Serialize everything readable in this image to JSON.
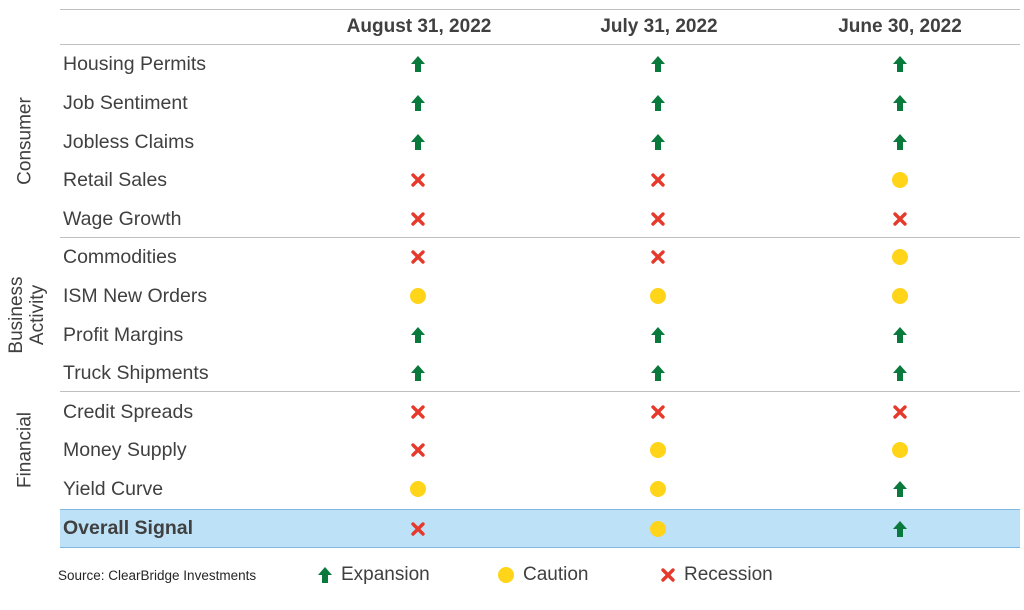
{
  "chart_data": {
    "type": "table",
    "columns": [
      "August 31, 2022",
      "July 31, 2022",
      "June 30, 2022"
    ],
    "groups": [
      {
        "label": "Consumer",
        "rows": [
          {
            "name": "Housing Permits",
            "signals": [
              "expansion",
              "expansion",
              "expansion"
            ]
          },
          {
            "name": "Job Sentiment",
            "signals": [
              "expansion",
              "expansion",
              "expansion"
            ]
          },
          {
            "name": "Jobless Claims",
            "signals": [
              "expansion",
              "expansion",
              "expansion"
            ]
          },
          {
            "name": "Retail Sales",
            "signals": [
              "recession",
              "recession",
              "caution"
            ]
          },
          {
            "name": "Wage Growth",
            "signals": [
              "recession",
              "recession",
              "recession"
            ]
          }
        ]
      },
      {
        "label_lines": [
          "Business",
          "Activity"
        ],
        "rows": [
          {
            "name": "Commodities",
            "signals": [
              "recession",
              "recession",
              "caution"
            ]
          },
          {
            "name": "ISM New Orders",
            "signals": [
              "caution",
              "caution",
              "caution"
            ]
          },
          {
            "name": "Profit Margins",
            "signals": [
              "expansion",
              "expansion",
              "expansion"
            ]
          },
          {
            "name": "Truck Shipments",
            "signals": [
              "expansion",
              "expansion",
              "expansion"
            ]
          }
        ]
      },
      {
        "label": "Financial",
        "rows": [
          {
            "name": "Credit Spreads",
            "signals": [
              "recession",
              "recession",
              "recession"
            ]
          },
          {
            "name": "Money Supply",
            "signals": [
              "recession",
              "caution",
              "caution"
            ]
          },
          {
            "name": "Yield Curve",
            "signals": [
              "caution",
              "caution",
              "expansion"
            ]
          }
        ]
      }
    ],
    "overall": {
      "name": "Overall Signal",
      "signals": [
        "recession",
        "caution",
        "expansion"
      ]
    },
    "legend": [
      {
        "key": "expansion",
        "label": "Expansion"
      },
      {
        "key": "caution",
        "label": "Caution"
      },
      {
        "key": "recession",
        "label": "Recession"
      }
    ],
    "source": "Source: ClearBridge Investments",
    "colors": {
      "expansion": "#0a7a3c",
      "caution": "#ffd419",
      "recession": "#e53a2b",
      "overall_bg": "#bde1f6",
      "text": "#404040"
    },
    "icons": {
      "expansion": "up-arrow-icon",
      "caution": "yellow-circle-icon",
      "recession": "red-x-icon"
    }
  }
}
